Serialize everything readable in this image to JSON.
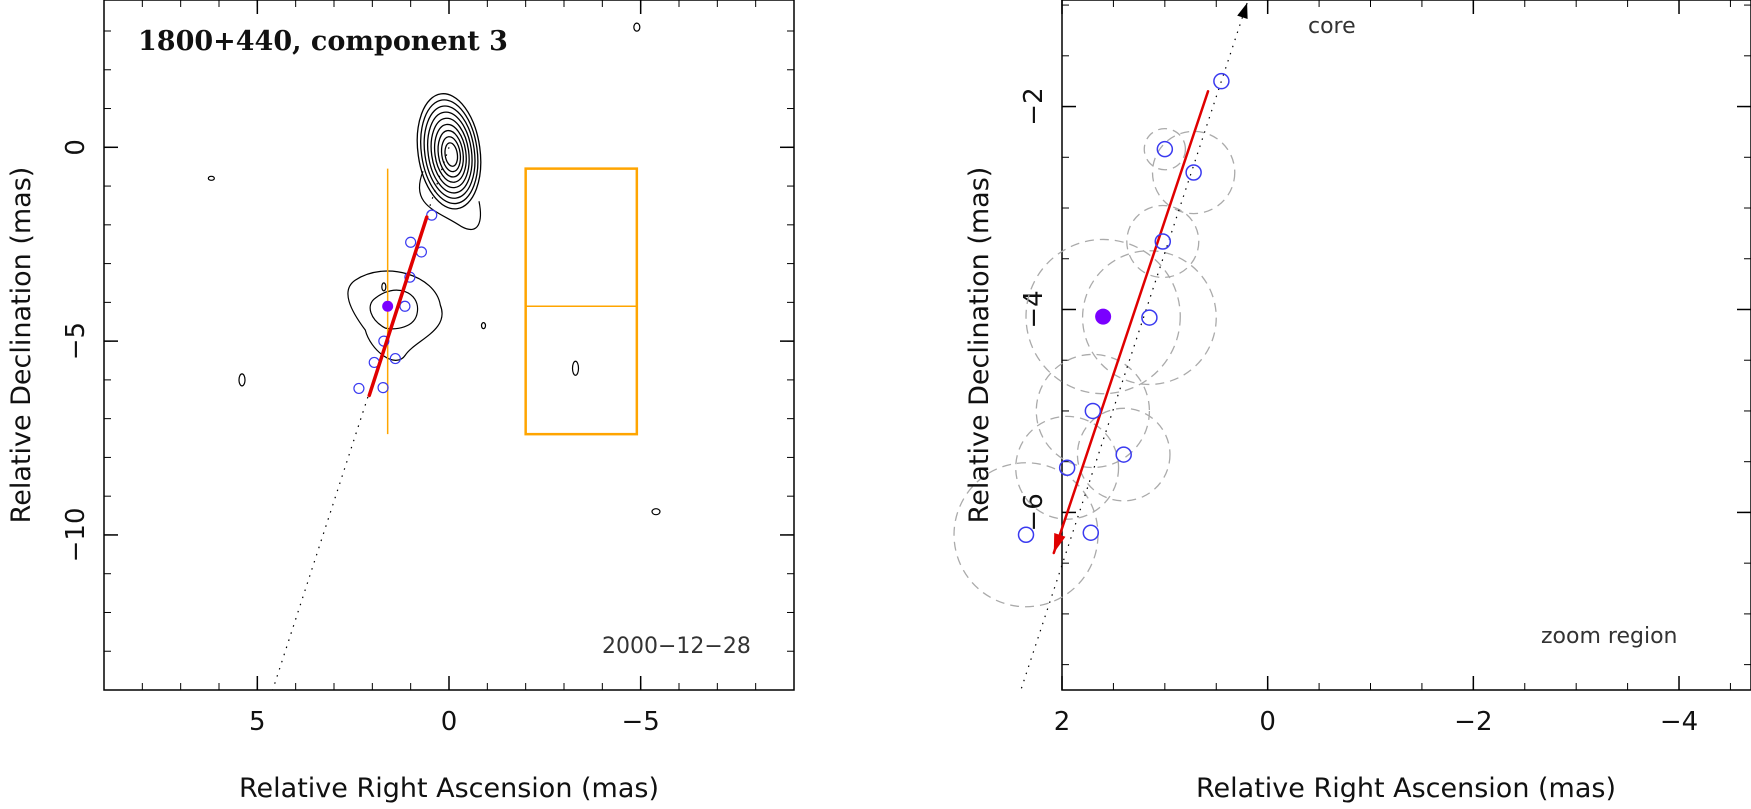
{
  "chart_data": [
    {
      "type": "scatter",
      "panel": "overview",
      "title": "1800+440, component 3",
      "xlabel": "Relative Right Ascension (mas)",
      "ylabel": "Relative Declination (mas)",
      "xlim": [
        9,
        -9
      ],
      "ylim": [
        -14,
        3.8
      ],
      "x_ticks": [
        5,
        0,
        -5
      ],
      "x_tick_labels": [
        "5",
        "0",
        "−5"
      ],
      "y_ticks": [
        0,
        -5,
        -10
      ],
      "y_tick_labels": [
        "0",
        "−5",
        "−10"
      ],
      "epoch_label": "2000−12−28",
      "series": [
        {
          "name": "component positions",
          "marker": "open-circle",
          "color": "#3a3af0",
          "x": [
            0.45,
            0.72,
            1.0,
            1.02,
            1.15,
            1.7,
            1.4,
            1.95,
            1.72,
            2.35
          ],
          "y": [
            -1.75,
            -2.7,
            -2.45,
            -3.35,
            -4.1,
            -5.0,
            -5.45,
            -5.55,
            -6.2,
            -6.22
          ]
        },
        {
          "name": "mean position",
          "marker": "filled-circle",
          "color": "#7a00ff",
          "x": [
            1.6
          ],
          "y": [
            -4.1
          ]
        }
      ],
      "velocity_vector": {
        "start": [
          0.58,
          -1.8
        ],
        "end": [
          2.08,
          -6.4
        ],
        "color": "#e00000"
      },
      "core_direction_line": {
        "start": [
          0,
          0
        ],
        "end": [
          4.6,
          -14
        ]
      },
      "zoom_region": {
        "ra": [
          -2.0,
          -4.9
        ],
        "dec": [
          -0.55,
          -7.4
        ],
        "crosshair": [
          1.6,
          -4.1
        ],
        "color": "#ffa500"
      },
      "contours": {
        "core_center": [
          0,
          0
        ],
        "levels": 9,
        "color": "#000000"
      }
    },
    {
      "type": "scatter",
      "panel": "zoom",
      "xlabel": "Relative Right Ascension (mas)",
      "ylabel": "Relative Declination (mas)",
      "xlim": [
        2,
        -4.7
      ],
      "ylim": [
        -7.75,
        -0.95
      ],
      "x_ticks": [
        2,
        0,
        -2,
        -4
      ],
      "x_tick_labels": [
        "2",
        "0",
        "−2",
        "−4"
      ],
      "y_ticks": [
        -2,
        -4,
        -6
      ],
      "y_tick_labels": [
        "−2",
        "−4",
        "−6"
      ],
      "core_label": "core",
      "zoom_label": "zoom region",
      "series": [
        {
          "name": "component positions",
          "marker": "open-circle",
          "color": "#3a3af0",
          "x": [
            0.45,
            0.72,
            1.0,
            1.02,
            1.15,
            1.7,
            1.4,
            1.95,
            1.72,
            2.35
          ],
          "y": [
            -1.75,
            -2.65,
            -2.42,
            -3.33,
            -4.08,
            -5.0,
            -5.43,
            -5.56,
            -6.2,
            -6.22
          ]
        },
        {
          "name": "mean position",
          "marker": "filled-circle",
          "color": "#7a00ff",
          "x": [
            1.6
          ],
          "y": [
            -4.07
          ]
        }
      ],
      "uncertainty_circles": [
        {
          "x": 0.72,
          "y": -2.65,
          "r": 0.4
        },
        {
          "x": 1.0,
          "y": -2.42,
          "r": 0.2
        },
        {
          "x": 1.02,
          "y": -3.33,
          "r": 0.35
        },
        {
          "x": 1.15,
          "y": -4.08,
          "r": 0.65
        },
        {
          "x": 1.6,
          "y": -4.07,
          "r": 0.75
        },
        {
          "x": 1.7,
          "y": -5.0,
          "r": 0.55
        },
        {
          "x": 1.4,
          "y": -5.43,
          "r": 0.45
        },
        {
          "x": 1.95,
          "y": -5.56,
          "r": 0.5
        },
        {
          "x": 2.35,
          "y": -6.22,
          "r": 0.7
        }
      ],
      "velocity_vector": {
        "start": [
          0.58,
          -1.85
        ],
        "end": [
          2.08,
          -6.4
        ],
        "color": "#e00000"
      },
      "core_direction_line": {
        "start": [
          0.2,
          -0.98
        ],
        "end": [
          2.4,
          -7.75
        ]
      }
    }
  ]
}
